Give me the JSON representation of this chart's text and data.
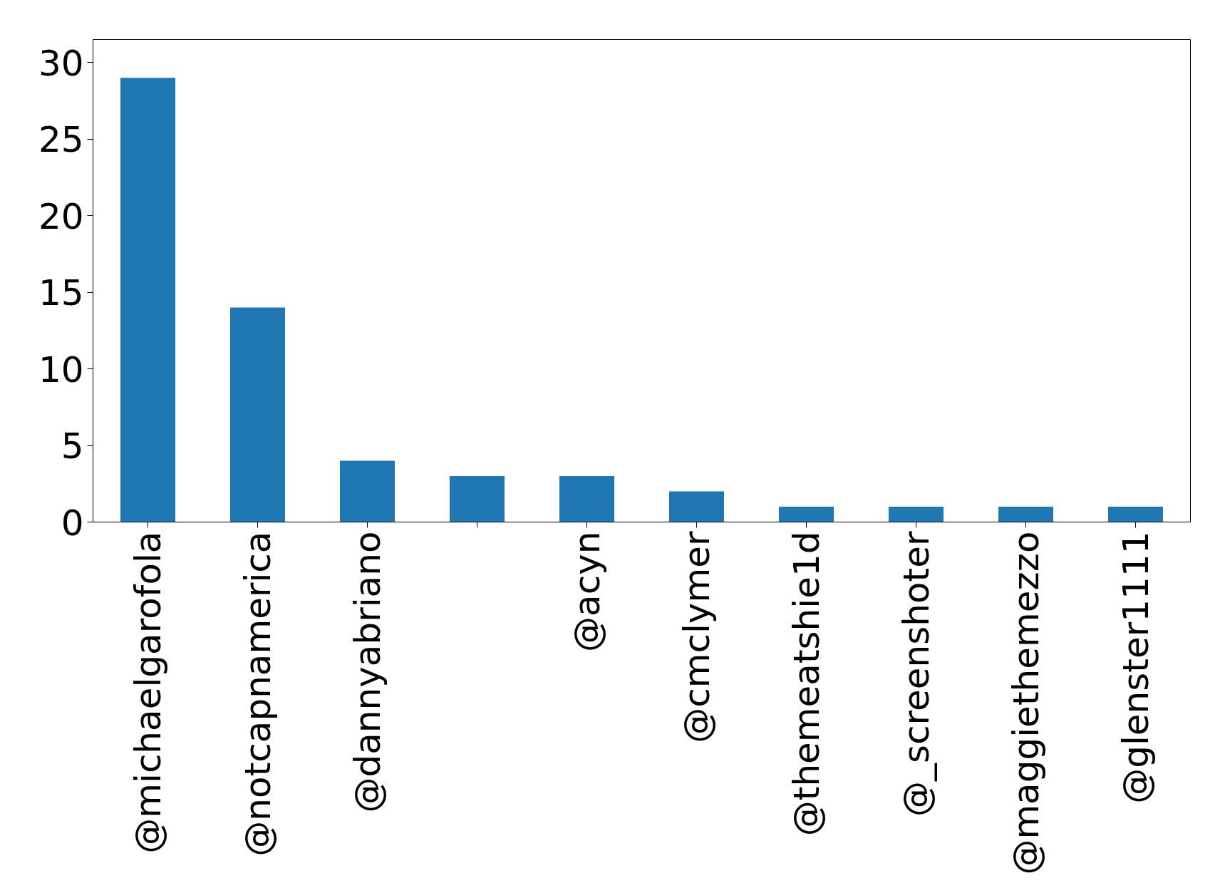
{
  "chart_data": {
    "type": "bar",
    "categories": [
      "@michaelgarofola",
      "@notcapnamerica",
      "@dannyabriano",
      null,
      "@acyn",
      "@cmclymer",
      "@themeatshie1d",
      "@_screenshoter",
      "@maggiethemezzo",
      "@glenster1111"
    ],
    "values": [
      29,
      14,
      4,
      3,
      3,
      2,
      1,
      1,
      1,
      1
    ],
    "color": "#1f77b4",
    "ylim": [
      0,
      31.5
    ],
    "yticks": [
      0,
      5,
      10,
      15,
      20,
      25,
      30
    ],
    "grid": false
  }
}
